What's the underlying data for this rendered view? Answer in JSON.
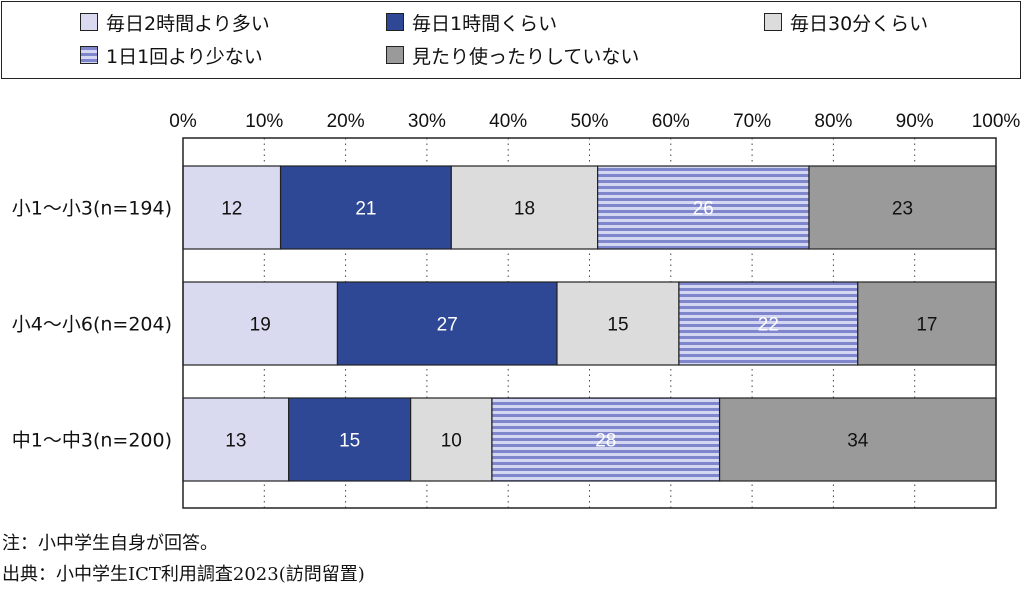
{
  "legend": [
    {
      "label": "毎日2時間より多い",
      "color": "#d9daf0",
      "pattern": "solid"
    },
    {
      "label": "毎日1時間くらい",
      "color": "#2e4896",
      "pattern": "solid"
    },
    {
      "label": "毎日30分くらい",
      "color": "#dcdcdc",
      "pattern": "solid"
    },
    {
      "label": "1日1回より少ない",
      "color": "#7f86cc",
      "pattern": "stripes"
    },
    {
      "label": "見たり使ったりしていない",
      "color": "#9a9a9a",
      "pattern": "solid"
    }
  ],
  "chart_data": {
    "type": "bar",
    "orientation": "horizontal",
    "stacked": true,
    "percent_scale": true,
    "xlim": [
      0,
      100
    ],
    "x_ticks": [
      "0%",
      "10%",
      "20%",
      "30%",
      "40%",
      "50%",
      "60%",
      "70%",
      "80%",
      "90%",
      "100%"
    ],
    "grid": "vertical-dotted",
    "legend_position": "top",
    "categories": [
      "小1～小3(n=194)",
      "小4～小6(n=204)",
      "中1～中3(n=200)"
    ],
    "series": [
      {
        "name": "毎日2時間より多い",
        "values": [
          12,
          19,
          13
        ]
      },
      {
        "name": "毎日1時間くらい",
        "values": [
          21,
          27,
          15
        ]
      },
      {
        "name": "毎日30分くらい",
        "values": [
          18,
          15,
          10
        ]
      },
      {
        "name": "1日1回より少ない",
        "values": [
          26,
          22,
          28
        ]
      },
      {
        "name": "見たり使ったりしていない",
        "values": [
          23,
          17,
          34
        ]
      }
    ]
  },
  "notes": {
    "note": "注：小中学生自身が回答。",
    "source": "出典：小中学生ICT利用調査2023(訪問留置)"
  }
}
